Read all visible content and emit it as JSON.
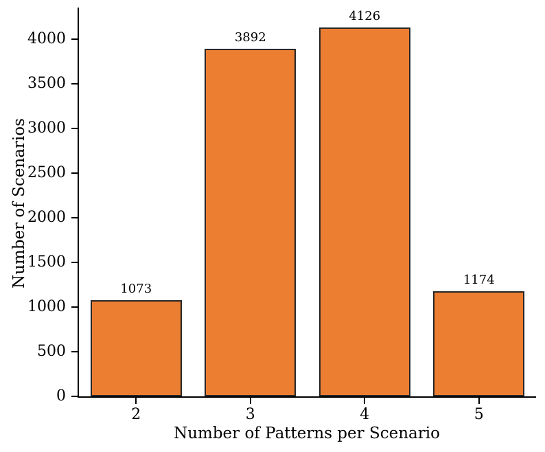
{
  "figure": {
    "background": "#ffffff"
  },
  "chart_data": {
    "type": "bar",
    "categories": [
      "2",
      "3",
      "4",
      "5"
    ],
    "values": [
      1073,
      3892,
      4126,
      1174
    ],
    "bar_labels": [
      "1073",
      "3892",
      "4126",
      "1174"
    ],
    "title": "",
    "xlabel": "Number of Patterns per Scenario",
    "ylabel": "Number of Scenarios",
    "ylim": [
      0,
      4350
    ],
    "yticks": [
      0,
      500,
      1000,
      1500,
      2000,
      2500,
      3000,
      3500,
      4000
    ],
    "grid": false,
    "legend": null,
    "bar_width_fraction": 0.8,
    "bar_color": "#ec7e32",
    "bar_edge_color": "#262626",
    "axis_color": "#000000",
    "text_color": "#000000"
  }
}
